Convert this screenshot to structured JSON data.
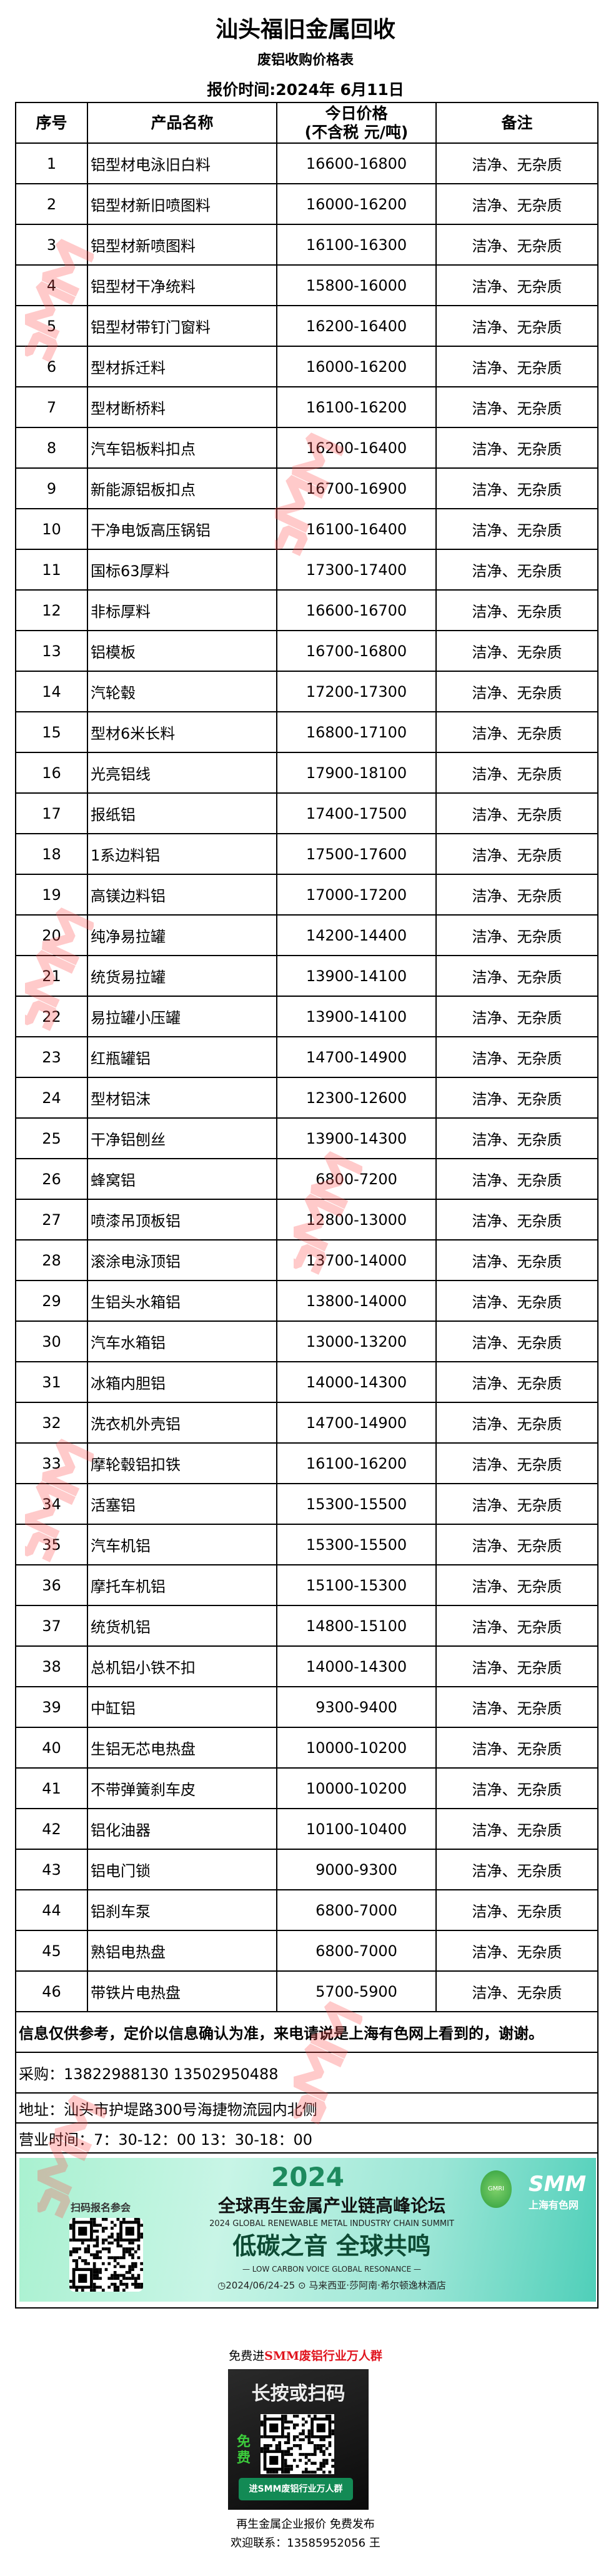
{
  "header": {
    "title": "汕头福旧金属回收",
    "subtitle": "废铝收购价格表",
    "quote_date": "报价时间:2024年 6月11日"
  },
  "table": {
    "columns": [
      "序号",
      "产品名称",
      "今日价格",
      "(不含税 元/吨)",
      "备注"
    ],
    "rows": [
      {
        "no": "1",
        "name": "铝型材电泳旧白料",
        "price": "16600-16800",
        "note": "洁净、无杂质"
      },
      {
        "no": "2",
        "name": "铝型材新旧喷图料",
        "price": "16000-16200",
        "note": "洁净、无杂质"
      },
      {
        "no": "3",
        "name": "铝型材新喷图料",
        "price": "16100-16300",
        "note": "洁净、无杂质"
      },
      {
        "no": "4",
        "name": "铝型材干净统料",
        "price": "15800-16000",
        "note": "洁净、无杂质"
      },
      {
        "no": "5",
        "name": "铝型材带钉门窗料",
        "price": "16200-16400",
        "note": "洁净、无杂质"
      },
      {
        "no": "6",
        "name": "型材拆迁料",
        "price": "16000-16200",
        "note": "洁净、无杂质"
      },
      {
        "no": "7",
        "name": "型材断桥料",
        "price": "16100-16200",
        "note": "洁净、无杂质"
      },
      {
        "no": "8",
        "name": "汽车铝板料扣点",
        "price": "16200-16400",
        "note": "洁净、无杂质"
      },
      {
        "no": "9",
        "name": "新能源铝板扣点",
        "price": "16700-16900",
        "note": "洁净、无杂质"
      },
      {
        "no": "10",
        "name": "干净电饭高压锅铝",
        "price": "16100-16400",
        "note": "洁净、无杂质"
      },
      {
        "no": "11",
        "name": "国标63厚料",
        "price": "17300-17400",
        "note": "洁净、无杂质"
      },
      {
        "no": "12",
        "name": "非标厚料",
        "price": "16600-16700",
        "note": "洁净、无杂质"
      },
      {
        "no": "13",
        "name": "铝模板",
        "price": "16700-16800",
        "note": "洁净、无杂质"
      },
      {
        "no": "14",
        "name": "汽轮毂",
        "price": "17200-17300",
        "note": "洁净、无杂质"
      },
      {
        "no": "15",
        "name": "型材6米长料",
        "price": "16800-17100",
        "note": "洁净、无杂质"
      },
      {
        "no": "16",
        "name": "光亮铝线",
        "price": "17900-18100",
        "note": "洁净、无杂质"
      },
      {
        "no": "17",
        "name": "报纸铝",
        "price": "17400-17500",
        "note": "洁净、无杂质"
      },
      {
        "no": "18",
        "name": "1系边料铝",
        "price": "17500-17600",
        "note": "洁净、无杂质"
      },
      {
        "no": "19",
        "name": "高镁边料铝",
        "price": "17000-17200",
        "note": "洁净、无杂质"
      },
      {
        "no": "20",
        "name": "纯净易拉罐",
        "price": "14200-14400",
        "note": "洁净、无杂质"
      },
      {
        "no": "21",
        "name": "统货易拉罐",
        "price": "13900-14100",
        "note": "洁净、无杂质"
      },
      {
        "no": "22",
        "name": "易拉罐小压罐",
        "price": "13900-14100",
        "note": "洁净、无杂质"
      },
      {
        "no": "23",
        "name": "红瓶罐铝",
        "price": "14700-14900",
        "note": "洁净、无杂质"
      },
      {
        "no": "24",
        "name": "型材铝沫",
        "price": "12300-12600",
        "note": "洁净、无杂质"
      },
      {
        "no": "25",
        "name": "干净铝刨丝",
        "price": "13900-14300",
        "note": "洁净、无杂质"
      },
      {
        "no": "26",
        "name": "蜂窝铝",
        "price": "6800-7200",
        "note": "洁净、无杂质"
      },
      {
        "no": "27",
        "name": "喷漆吊顶板铝",
        "price": "12800-13000",
        "note": "洁净、无杂质"
      },
      {
        "no": "28",
        "name": "滚涂电泳顶铝",
        "price": "13700-14000",
        "note": "洁净、无杂质"
      },
      {
        "no": "29",
        "name": "生铝头水箱铝",
        "price": "13800-14000",
        "note": "洁净、无杂质"
      },
      {
        "no": "30",
        "name": "汽车水箱铝",
        "price": "13000-13200",
        "note": "洁净、无杂质"
      },
      {
        "no": "31",
        "name": "冰箱内胆铝",
        "price": "14000-14300",
        "note": "洁净、无杂质"
      },
      {
        "no": "32",
        "name": "洗衣机外壳铝",
        "price": "14700-14900",
        "note": "洁净、无杂质"
      },
      {
        "no": "33",
        "name": "摩轮毂铝扣铁",
        "price": "16100-16200",
        "note": "洁净、无杂质"
      },
      {
        "no": "34",
        "name": "活塞铝",
        "price": "15300-15500",
        "note": "洁净、无杂质"
      },
      {
        "no": "35",
        "name": "汽车机铝",
        "price": "15300-15500",
        "note": "洁净、无杂质"
      },
      {
        "no": "36",
        "name": "摩托车机铝",
        "price": "15100-15300",
        "note": "洁净、无杂质"
      },
      {
        "no": "37",
        "name": "统货机铝",
        "price": "14800-15100",
        "note": "洁净、无杂质"
      },
      {
        "no": "38",
        "name": "总机铝小铁不扣",
        "price": "14000-14300",
        "note": "洁净、无杂质"
      },
      {
        "no": "39",
        "name": "中缸铝",
        "price": "9300-9400",
        "note": "洁净、无杂质"
      },
      {
        "no": "40",
        "name": "生铝无芯电热盘",
        "price": "10000-10200",
        "note": "洁净、无杂质"
      },
      {
        "no": "41",
        "name": "不带弹簧刹车皮",
        "price": "10000-10200",
        "note": "洁净、无杂质"
      },
      {
        "no": "42",
        "name": "铝化油器",
        "price": "10100-10400",
        "note": "洁净、无杂质"
      },
      {
        "no": "43",
        "name": "铝电门锁",
        "price": "9000-9300",
        "note": "洁净、无杂质"
      },
      {
        "no": "44",
        "name": "铝刹车泵",
        "price": "6800-7000",
        "note": "洁净、无杂质"
      },
      {
        "no": "45",
        "name": "熟铝电热盘",
        "price": "6800-7000",
        "note": "洁净、无杂质"
      },
      {
        "no": "46",
        "name": "带铁片电热盘",
        "price": "5700-5900",
        "note": "洁净、无杂质"
      }
    ]
  },
  "footer": {
    "notice": "信息仅供参考，定价以信息确认为准，来电请说是上海有色网上看到的，谢谢。",
    "purchase": "采购：13822988130   13502950488",
    "address": "地址：汕头市护堤路300号海捷物流园内北侧",
    "hours": "营业时间：7：30-12：00   13：30-18：00"
  },
  "banner": {
    "year": "2024",
    "title": "全球再生金属产业链高峰论坛",
    "title_en": "2024 GLOBAL RENEWABLE METAL INDUSTRY CHAIN SUMMIT",
    "slogan": "低碳之音 全球共鸣",
    "slogan_en": "— LOW CARBON VOICE GLOBAL RESONANCE —",
    "date_venue": "◷2024/06/24-25 ⊙ 马来西亚·莎阿南·希尔顿逸林酒店",
    "scan_label": "扫码报名参会",
    "logo_gmri": "GMRI",
    "logo_smm": "SMM",
    "logo_smm_cn": "上海有色网",
    "bg_color": "#a9f1d0"
  },
  "promo": {
    "title_prefix": "免费进",
    "title_highlight": "SMM废铝行业万人群",
    "highlight_color": "#e0141e",
    "card_heading": "长按或扫码",
    "card_free": "免费",
    "card_button": "进SMM废铝行业万人群",
    "line1": "再生金属企业报价 免费发布",
    "line2": "欢迎联系：13585952056 王"
  },
  "watermark": "SMM"
}
